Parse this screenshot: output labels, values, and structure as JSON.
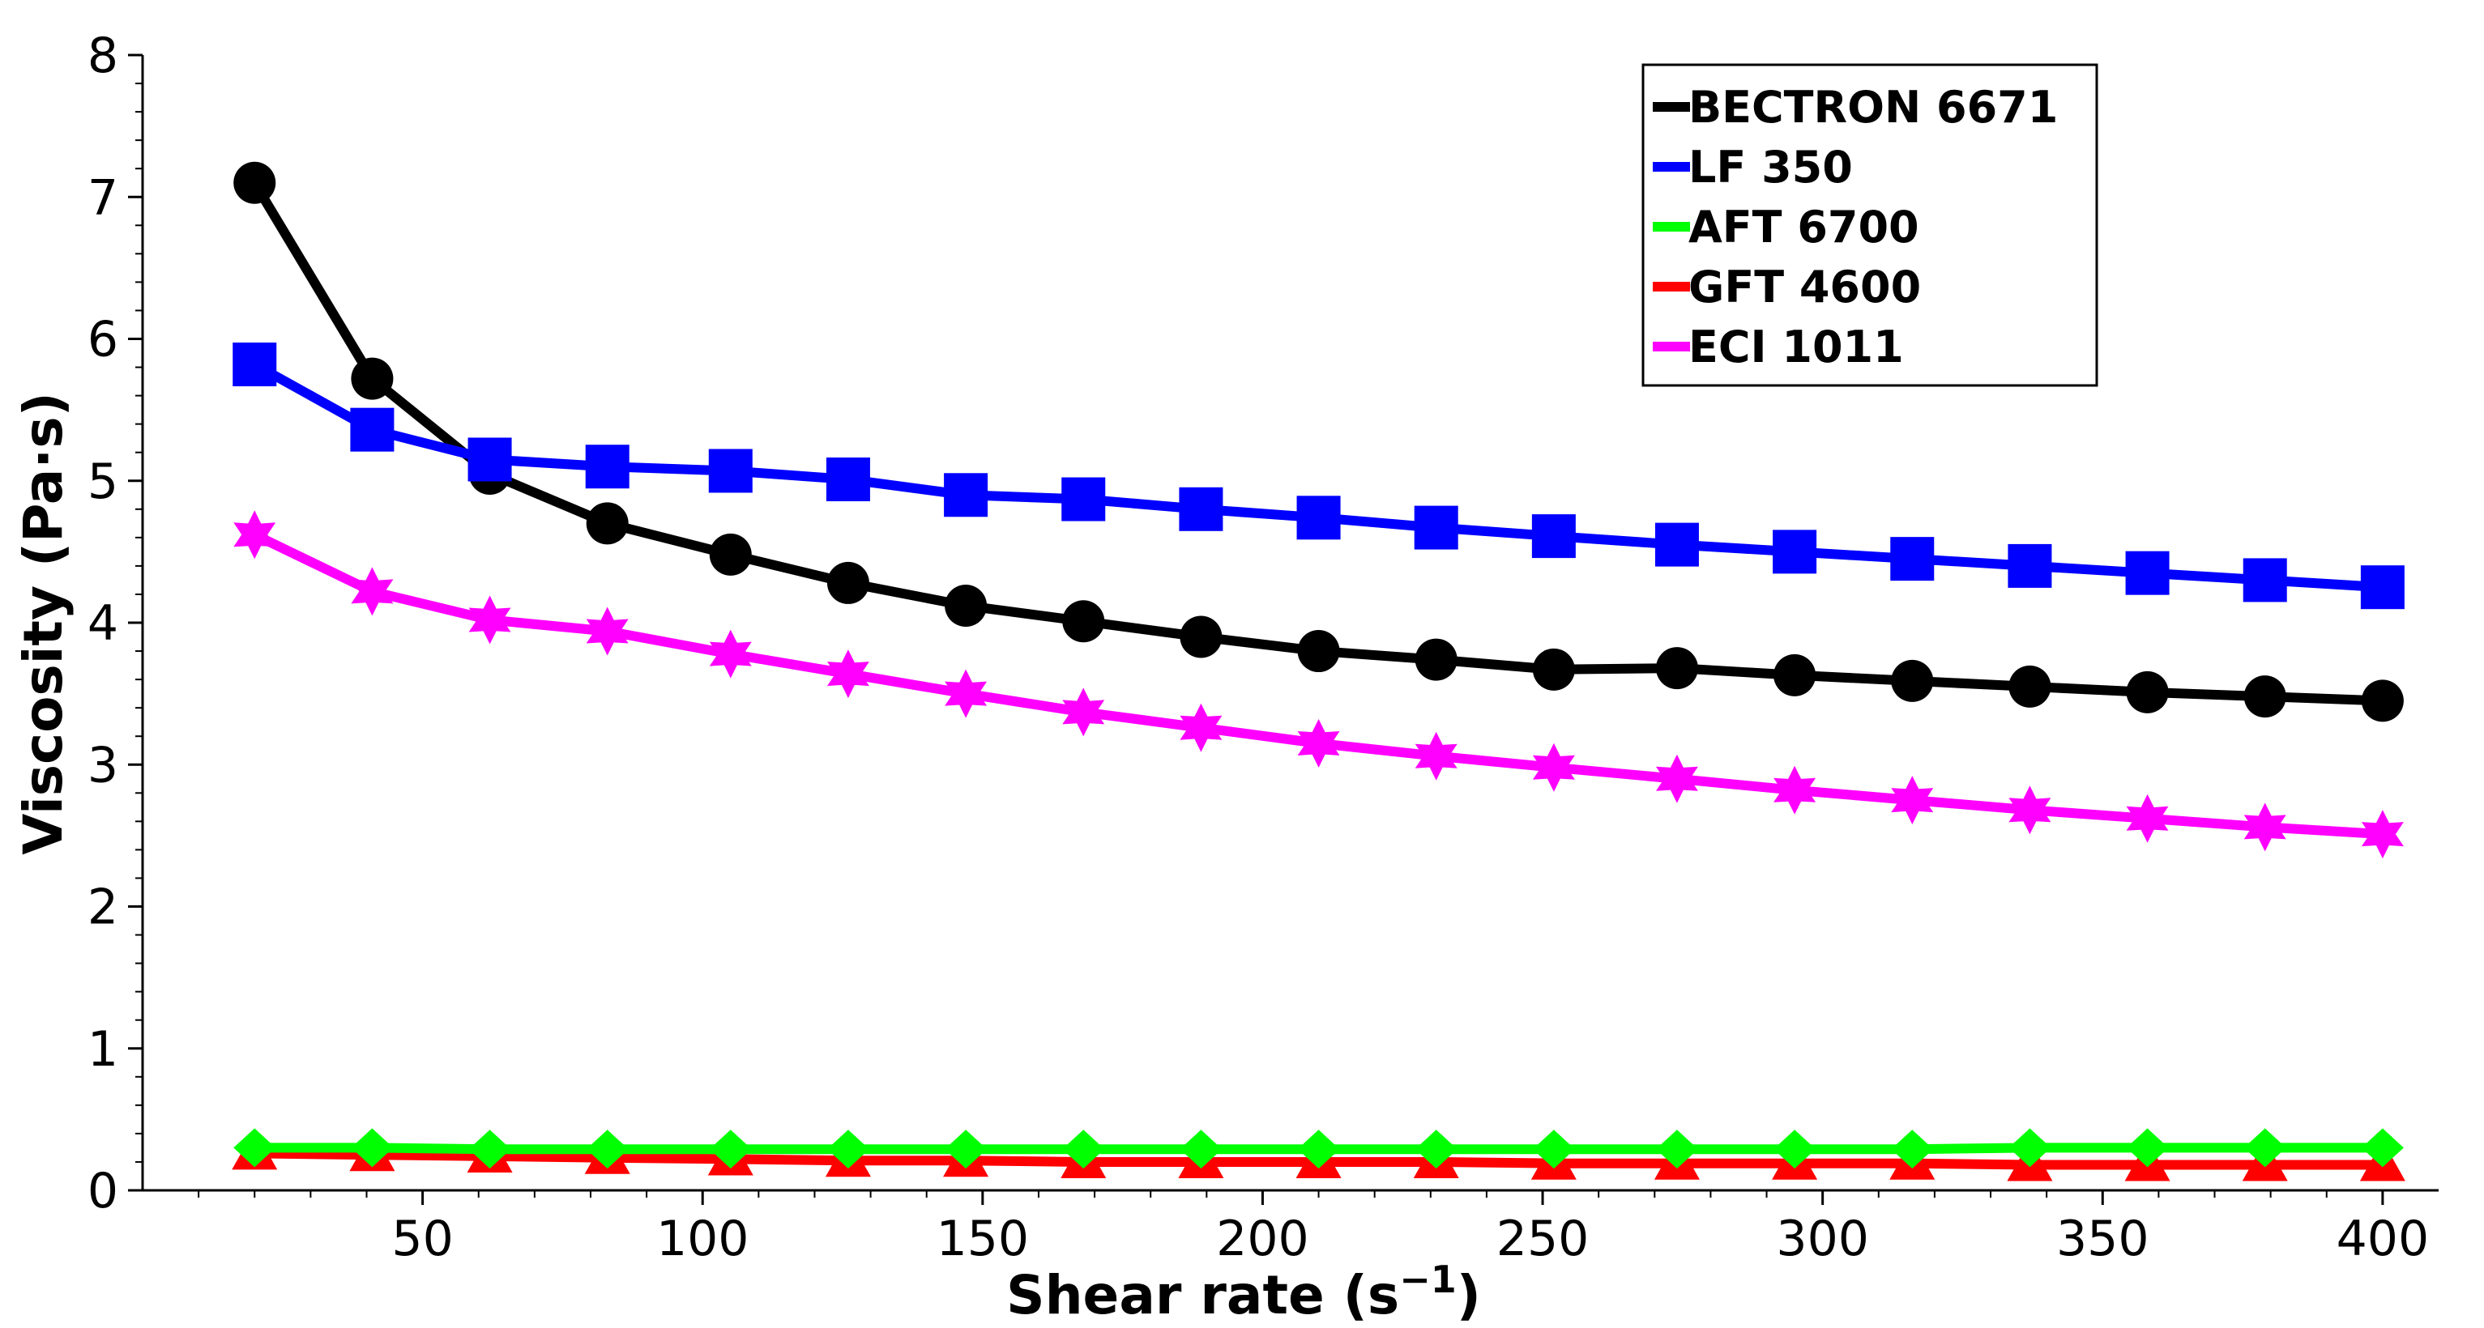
{
  "chart_data": {
    "type": "line",
    "title": "",
    "xlabel": "Shear rate",
    "xlabel_unit": "(s",
    "xlabel_sup": "−1",
    "xlabel_close": ")",
    "ylabel": "Viscosity (Pa·s)",
    "xlim": [
      0,
      410
    ],
    "ylim": [
      0,
      8
    ],
    "xticks": [
      50,
      100,
      150,
      200,
      250,
      300,
      350,
      400
    ],
    "yticks": [
      0,
      1,
      2,
      3,
      4,
      5,
      6,
      7,
      8
    ],
    "legend_position": "top-right",
    "grid": false,
    "x": [
      20,
      41,
      62,
      83,
      105,
      126,
      147,
      168,
      189,
      210,
      231,
      252,
      274,
      295,
      316,
      337,
      358,
      379,
      400
    ],
    "series": [
      {
        "name": "BECTRON 6671",
        "color": "#000000",
        "marker": "circle",
        "values": [
          7.1,
          5.72,
          5.05,
          4.7,
          4.48,
          4.28,
          4.12,
          4.01,
          3.9,
          3.8,
          3.74,
          3.67,
          3.68,
          3.63,
          3.59,
          3.55,
          3.51,
          3.48,
          3.45
        ]
      },
      {
        "name": "LF 350",
        "color": "#0000ff",
        "marker": "square",
        "values": [
          5.82,
          5.36,
          5.15,
          5.1,
          5.07,
          5.01,
          4.9,
          4.87,
          4.8,
          4.74,
          4.67,
          4.61,
          4.55,
          4.5,
          4.45,
          4.4,
          4.35,
          4.3,
          4.25
        ]
      },
      {
        "name": "AFT 6700",
        "color": "#00ff00",
        "marker": "diamond",
        "values": [
          0.3,
          0.3,
          0.29,
          0.29,
          0.29,
          0.29,
          0.29,
          0.29,
          0.29,
          0.29,
          0.29,
          0.29,
          0.29,
          0.29,
          0.29,
          0.3,
          0.3,
          0.3,
          0.3
        ]
      },
      {
        "name": "GFT 4600",
        "color": "#ff0000",
        "marker": "triangle",
        "values": [
          0.26,
          0.25,
          0.24,
          0.23,
          0.22,
          0.21,
          0.21,
          0.2,
          0.2,
          0.2,
          0.2,
          0.19,
          0.19,
          0.19,
          0.19,
          0.18,
          0.18,
          0.18,
          0.18
        ]
      },
      {
        "name": "ECI 1011",
        "color": "#ff00ff",
        "marker": "star",
        "values": [
          4.62,
          4.22,
          4.02,
          3.94,
          3.78,
          3.64,
          3.5,
          3.37,
          3.26,
          3.15,
          3.06,
          2.98,
          2.9,
          2.82,
          2.75,
          2.68,
          2.62,
          2.56,
          2.51
        ]
      }
    ]
  }
}
